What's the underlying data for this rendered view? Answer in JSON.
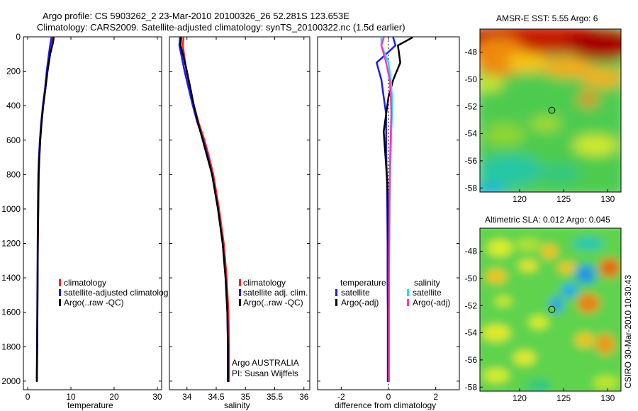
{
  "header": {
    "title_line1": "Argo profile: CS 5903262_2 23-Mar-2010 20100326_26 52.281S 123.653E",
    "title_line2": "Climatology: CARS2009. Satellite-adjusted climatology: synTS_20100322.nc (1.5d earlier)"
  },
  "credit": "CSIRO 30-Mar-2010 10:30:43",
  "colors": {
    "climatology": "#ff2020",
    "satellite_adjusted": "#1a1aff",
    "argo": "#000000",
    "satellite_salinity": "#19e6e6",
    "argo_salinity_adj": "#ff33cc"
  },
  "chart_data": [
    {
      "type": "line",
      "id": "temperature-profile",
      "xlabel": "temperature",
      "ylabel": "",
      "xlim": [
        -1,
        31
      ],
      "ylim": [
        0,
        2050
      ],
      "y_reversed": true,
      "xticks": [
        0,
        10,
        20,
        30
      ],
      "yticks": [
        0,
        200,
        400,
        600,
        800,
        1000,
        1200,
        1400,
        1600,
        1800,
        2000
      ],
      "legend": [
        "climatology",
        "satellite-adjusted climatolog",
        "Argo(..raw -QC)"
      ],
      "series": [
        {
          "name": "climatology",
          "color": "#ff2020",
          "x": [
            5.8,
            5.6,
            5.0,
            4.5,
            4.1,
            3.6,
            3.2,
            2.9,
            2.7,
            2.55,
            2.45,
            2.35,
            2.3,
            2.25,
            2.2,
            2.15
          ],
          "y": [
            5,
            30,
            100,
            200,
            300,
            400,
            500,
            600,
            700,
            800,
            1000,
            1200,
            1400,
            1600,
            1800,
            2000
          ]
        },
        {
          "name": "satellite-adjusted climatolog",
          "color": "#1a1aff",
          "x": [
            5.5,
            5.3,
            4.9,
            4.4,
            4.0,
            3.5,
            3.1,
            2.8,
            2.6,
            2.45,
            2.35,
            2.3,
            2.25,
            2.2,
            2.15,
            2.1
          ],
          "y": [
            5,
            30,
            100,
            200,
            300,
            400,
            500,
            600,
            700,
            800,
            1000,
            1200,
            1400,
            1600,
            1800,
            2000
          ]
        },
        {
          "name": "Argo(..raw -QC)",
          "color": "#000000",
          "x": [
            6.0,
            5.9,
            5.2,
            4.6,
            4.1,
            3.6,
            3.2,
            2.9,
            2.7,
            2.55,
            2.45,
            2.35,
            2.3,
            2.25,
            2.2,
            2.1
          ],
          "y": [
            5,
            30,
            100,
            200,
            300,
            400,
            500,
            600,
            700,
            800,
            1000,
            1200,
            1400,
            1600,
            1800,
            2000
          ]
        }
      ]
    },
    {
      "type": "line",
      "id": "salinity-profile",
      "xlabel": "salinity",
      "ylabel": "",
      "xlim": [
        33.7,
        36.1
      ],
      "ylim": [
        0,
        2050
      ],
      "y_reversed": true,
      "xticks": [
        34,
        34.5,
        35,
        35.5,
        36
      ],
      "xtick_labels": [
        "34",
        "34.5",
        "35",
        "35.5",
        "36"
      ],
      "yticks": [
        0,
        200,
        400,
        600,
        800,
        1000,
        1200,
        1400,
        1600,
        1800,
        2000
      ],
      "legend": [
        "climatology",
        "satellite adj. clim.",
        "Argo(..raw -QC)"
      ],
      "annotation_line1": "Argo AUSTRALIA",
      "annotation_line2": "PI: Susan Wijffels",
      "series": [
        {
          "name": "climatology",
          "color": "#ff2020",
          "x": [
            33.94,
            33.93,
            33.95,
            33.99,
            34.05,
            34.12,
            34.2,
            34.3,
            34.38,
            34.45,
            34.55,
            34.63,
            34.68,
            34.71,
            34.72,
            34.72
          ],
          "y": [
            5,
            50,
            100,
            200,
            300,
            400,
            500,
            600,
            700,
            800,
            1000,
            1200,
            1400,
            1600,
            1800,
            2000
          ]
        },
        {
          "name": "satellite adj. clim.",
          "color": "#1a1aff",
          "x": [
            33.88,
            33.87,
            33.9,
            33.96,
            34.03,
            34.1,
            34.18,
            34.28,
            34.36,
            34.43,
            34.53,
            34.61,
            34.66,
            34.69,
            34.7,
            34.7
          ],
          "y": [
            5,
            50,
            100,
            200,
            300,
            400,
            500,
            600,
            700,
            800,
            1000,
            1200,
            1400,
            1600,
            1800,
            2000
          ]
        },
        {
          "name": "Argo(..raw -QC)",
          "color": "#000000",
          "x": [
            33.9,
            33.89,
            33.93,
            34.0,
            34.06,
            34.12,
            34.19,
            34.27,
            34.35,
            34.43,
            34.53,
            34.61,
            34.66,
            34.69,
            34.7,
            34.7
          ],
          "y": [
            5,
            50,
            100,
            200,
            300,
            400,
            500,
            600,
            700,
            800,
            1000,
            1200,
            1400,
            1600,
            1800,
            2000
          ]
        }
      ]
    },
    {
      "type": "line",
      "id": "difference-profile",
      "xlabel": "difference from climatology",
      "ylabel": "",
      "xlim": [
        -3,
        3
      ],
      "ylim": [
        0,
        2050
      ],
      "y_reversed": true,
      "xticks": [
        -2,
        0,
        2
      ],
      "yticks": [
        0,
        200,
        400,
        600,
        800,
        1000,
        1200,
        1400,
        1600,
        1800,
        2000
      ],
      "legend_temperature_title": "temperature",
      "legend_salinity_title": "salinity",
      "legend": [
        "satellite",
        "Argo(-adj)",
        "satellite",
        "Argo(-adj)"
      ],
      "series": [
        {
          "name": "temperature satellite",
          "color": "#1a1aff",
          "x": [
            0.2,
            0.3,
            -0.5,
            -0.3,
            -0.2,
            -0.1,
            -0.1,
            -0.1,
            -0.08,
            -0.06,
            -0.05,
            -0.04,
            -0.04,
            -0.03,
            -0.03,
            -0.03
          ],
          "y": [
            5,
            50,
            150,
            250,
            350,
            450,
            550,
            650,
            750,
            850,
            1000,
            1200,
            1400,
            1600,
            1800,
            2000
          ]
        },
        {
          "name": "temperature Argo(-adj)",
          "color": "#000000",
          "x": [
            1.0,
            0.4,
            0.5,
            0.2,
            0.0,
            -0.1,
            -0.2,
            -0.15,
            -0.1,
            -0.05,
            -0.02,
            0.0,
            0.0,
            0.0,
            0.0,
            0.0
          ],
          "y": [
            5,
            50,
            150,
            250,
            350,
            450,
            550,
            650,
            750,
            850,
            1000,
            1200,
            1400,
            1600,
            1800,
            2000
          ]
        },
        {
          "name": "salinity satellite",
          "color": "#19e6e6",
          "x": [
            -0.3,
            -0.3,
            0.0,
            0.1,
            0.15,
            0.15,
            0.12,
            0.1,
            0.08,
            0.07,
            0.05,
            0.04,
            0.03,
            0.02,
            0.02,
            0.02
          ],
          "y": [
            5,
            50,
            150,
            250,
            350,
            450,
            550,
            650,
            750,
            850,
            1000,
            1200,
            1400,
            1600,
            1800,
            2000
          ]
        },
        {
          "name": "salinity Argo(-adj)",
          "color": "#ff33cc",
          "x": [
            -0.2,
            -0.3,
            -0.1,
            0.05,
            0.1,
            0.12,
            0.1,
            0.08,
            0.06,
            0.05,
            0.04,
            0.03,
            0.02,
            0.02,
            0.02,
            0.02
          ],
          "y": [
            5,
            50,
            150,
            250,
            350,
            450,
            550,
            650,
            750,
            850,
            1000,
            1200,
            1400,
            1600,
            1800,
            2000
          ]
        }
      ]
    },
    {
      "type": "heatmap",
      "id": "sst-map",
      "title": "AMSR-E SST: 5.55 Argo: 6",
      "xlim": [
        115.5,
        131.5
      ],
      "ylim": [
        -58.3,
        -46.3
      ],
      "xticks": [
        120,
        125,
        130
      ],
      "yticks": [
        -48,
        -50,
        -52,
        -54,
        -56,
        -58
      ],
      "argo_position": {
        "lon": 123.653,
        "lat": -52.281
      }
    },
    {
      "type": "heatmap",
      "id": "sla-map",
      "title": "Altimetric SLA: 0.012 Argo: 0.045",
      "xlim": [
        115.5,
        131.5
      ],
      "ylim": [
        -58.3,
        -46.3
      ],
      "xticks": [
        120,
        125,
        130
      ],
      "yticks": [
        -48,
        -50,
        -52,
        -54,
        -56,
        -58
      ],
      "argo_position": {
        "lon": 123.653,
        "lat": -52.281
      }
    }
  ]
}
